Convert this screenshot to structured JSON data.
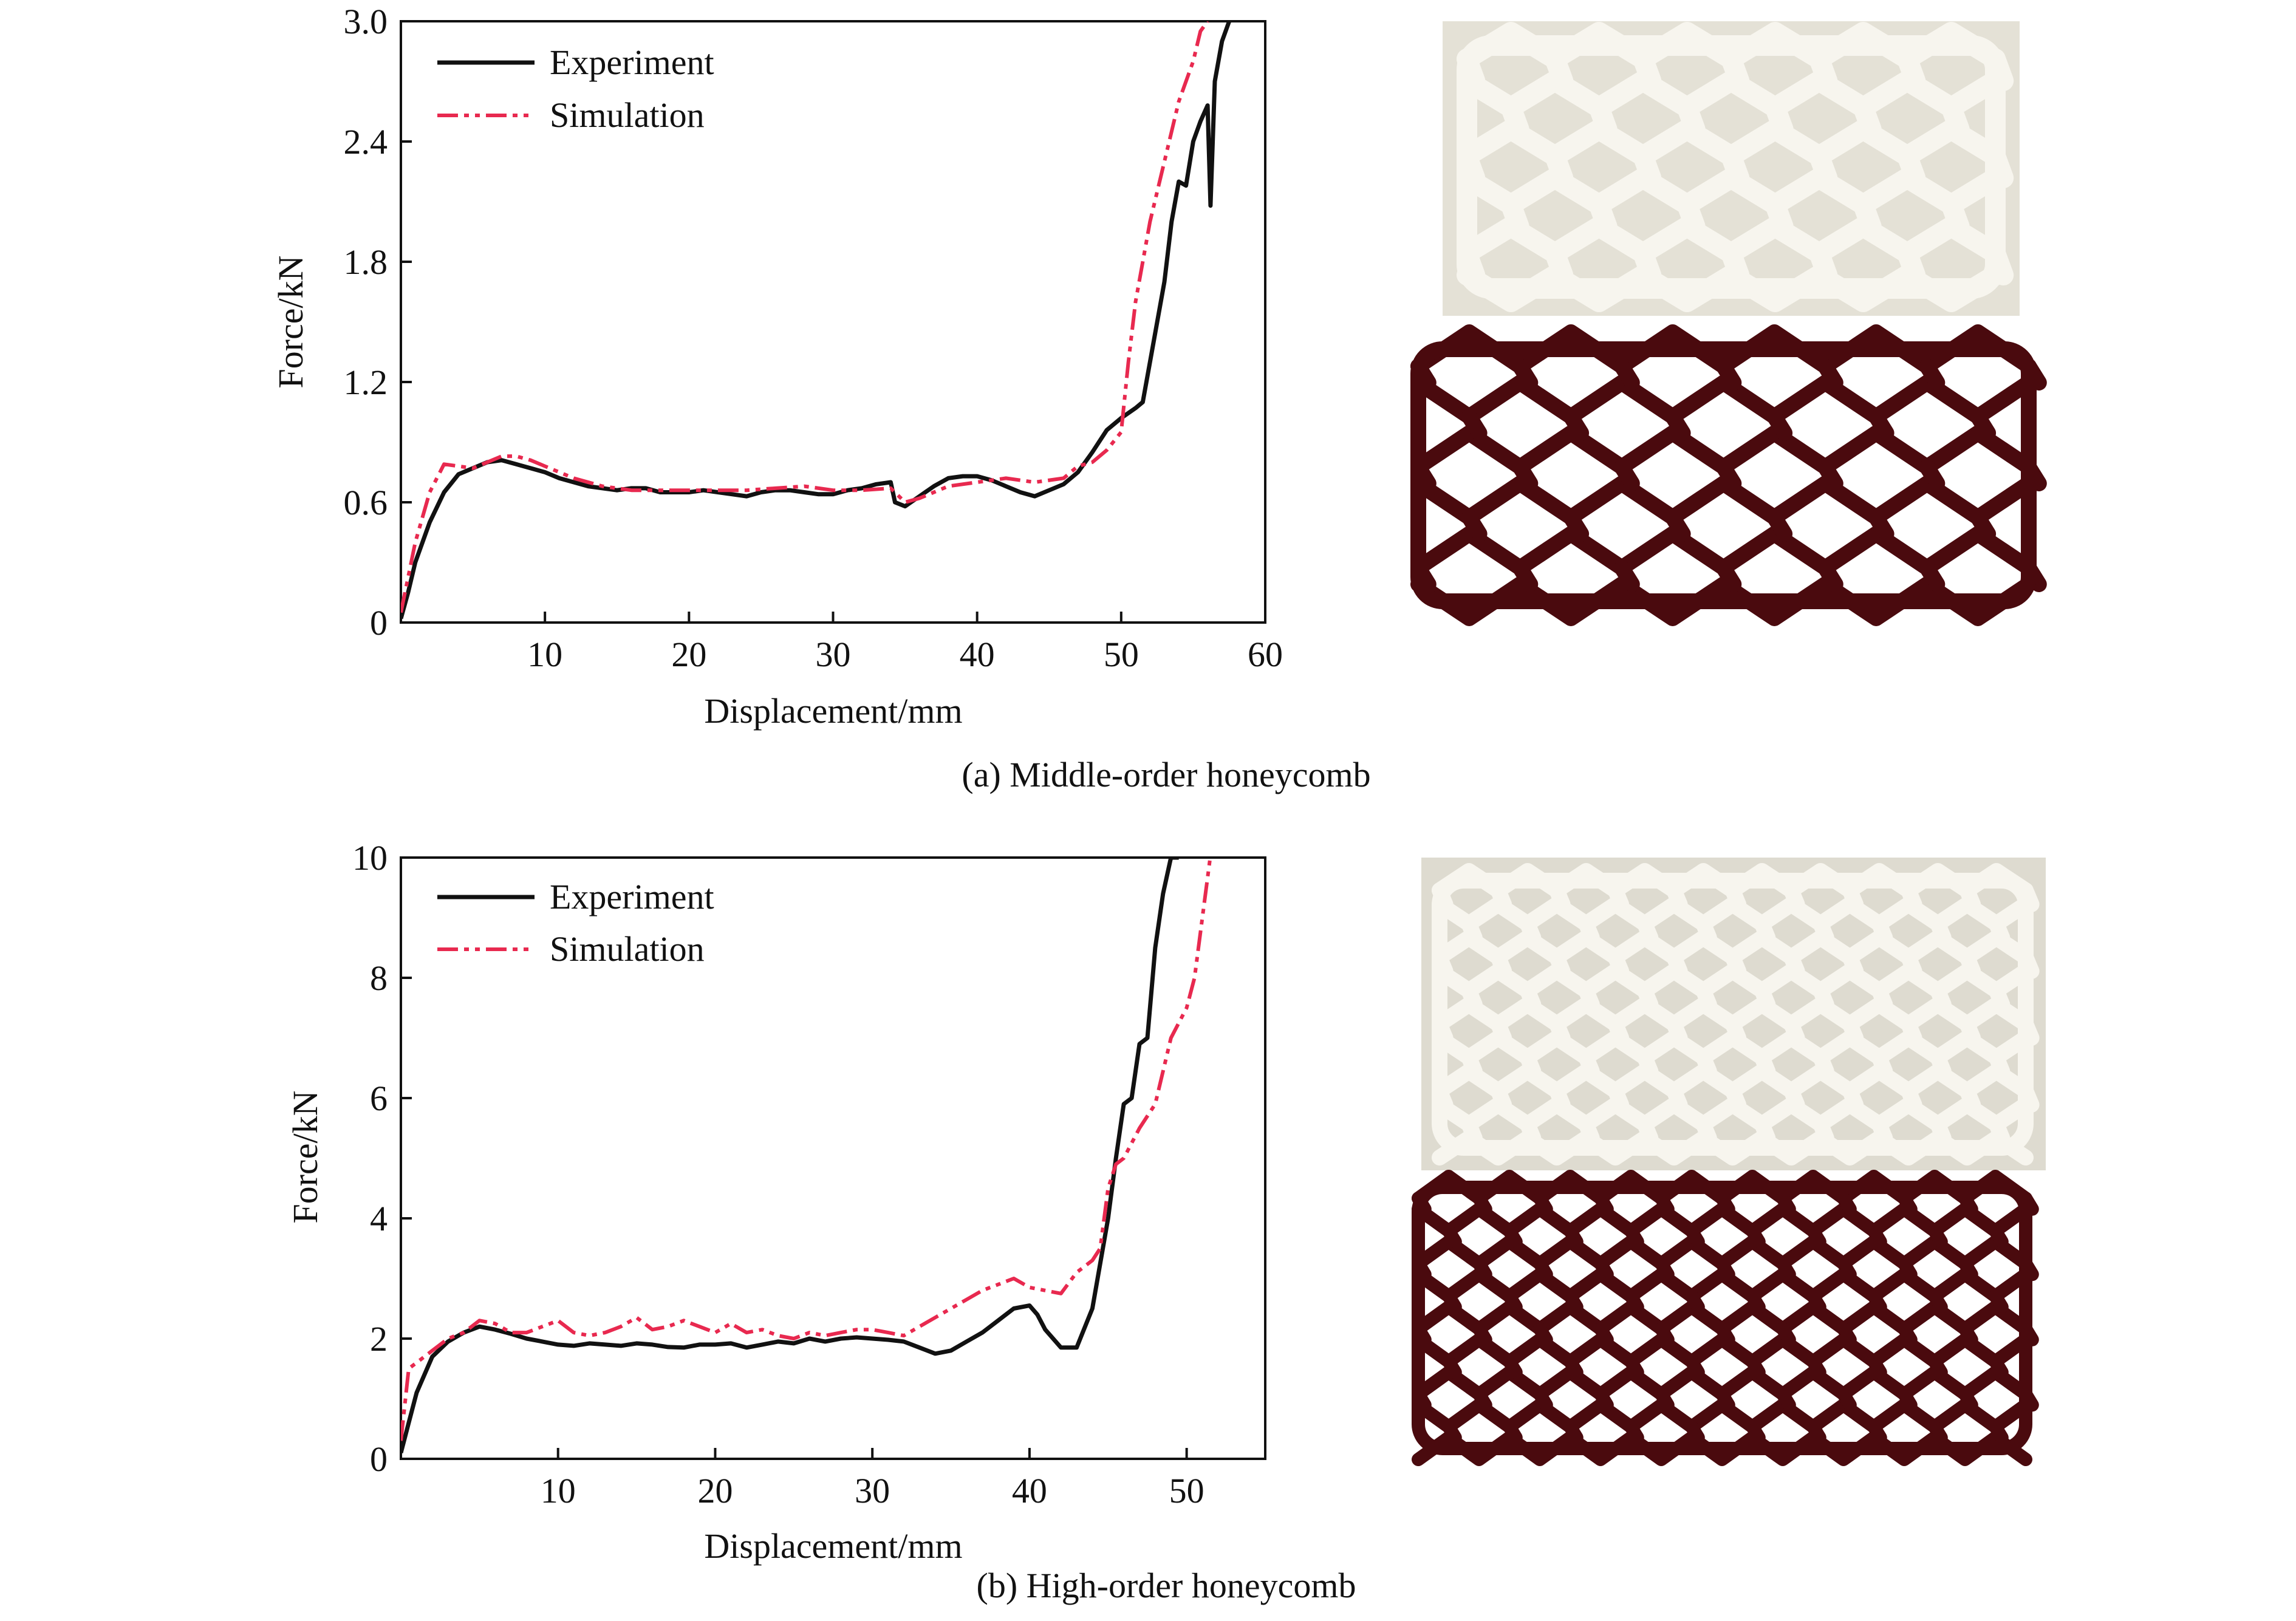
{
  "panels": [
    {
      "caption": "(a) Middle-order honeycomb",
      "photo_label": "photograph-of-deformed-middle-order-honeycomb",
      "sim_label": "simulated-deformed-middle-order-honeycomb"
    },
    {
      "caption": "(b) High-order honeycomb",
      "photo_label": "photograph-of-deformed-high-order-honeycomb",
      "sim_label": "simulated-deformed-high-order-honeycomb"
    }
  ],
  "colors": {
    "experiment": "#111111",
    "simulation": "#e8294f",
    "photo_bg": "#e9e6dc",
    "photo_strut": "#f7f5ee",
    "sim_strut": "#4a0a0e"
  },
  "chart_data": [
    {
      "type": "line",
      "title": "",
      "xlabel": "Displacement/mm",
      "ylabel": "Force/kN",
      "xlim": [
        0,
        60
      ],
      "ylim": [
        0,
        3.0
      ],
      "xticks": [
        10,
        20,
        30,
        40,
        50,
        60
      ],
      "yticks": [
        0,
        0.6,
        1.2,
        1.8,
        2.4,
        3.0
      ],
      "ytick_labels": [
        "0",
        "0.6",
        "1.2",
        "1.8",
        "2.4",
        "3.0"
      ],
      "legend_position": "top-left",
      "series": [
        {
          "name": "Experiment",
          "style": "solid",
          "x": [
            0,
            0.5,
            1,
            2,
            3,
            4,
            5,
            6,
            7,
            8,
            9,
            10,
            11,
            12,
            13,
            14,
            15,
            16,
            17,
            18,
            19,
            20,
            21,
            22,
            23,
            24,
            25,
            26,
            27,
            28,
            29,
            30,
            31,
            32,
            33,
            34,
            34.3,
            35,
            36,
            37,
            38,
            39,
            40,
            41,
            42,
            43,
            44,
            45,
            46,
            47,
            48,
            49,
            50,
            51,
            51.5,
            52,
            53,
            53.5,
            54,
            54.5,
            55,
            55.5,
            56,
            56.2,
            56.5,
            57,
            57.5
          ],
          "y": [
            0.02,
            0.15,
            0.3,
            0.5,
            0.65,
            0.74,
            0.77,
            0.8,
            0.81,
            0.79,
            0.77,
            0.75,
            0.72,
            0.7,
            0.68,
            0.67,
            0.66,
            0.67,
            0.67,
            0.65,
            0.65,
            0.65,
            0.66,
            0.65,
            0.64,
            0.63,
            0.65,
            0.66,
            0.66,
            0.65,
            0.64,
            0.64,
            0.66,
            0.67,
            0.69,
            0.7,
            0.6,
            0.58,
            0.63,
            0.68,
            0.72,
            0.73,
            0.73,
            0.71,
            0.68,
            0.65,
            0.63,
            0.66,
            0.69,
            0.75,
            0.85,
            0.96,
            1.02,
            1.07,
            1.1,
            1.3,
            1.7,
            2.0,
            2.2,
            2.18,
            2.4,
            2.5,
            2.58,
            2.08,
            2.7,
            2.9,
            3.0
          ]
        },
        {
          "name": "Simulation",
          "style": "dash-dot-dot",
          "x": [
            0,
            1,
            2,
            3,
            4,
            5,
            6,
            7,
            8,
            9,
            10,
            12,
            14,
            16,
            18,
            20,
            22,
            24,
            26,
            28,
            30,
            32,
            34,
            35,
            36,
            38,
            40,
            42,
            44,
            46,
            47,
            48,
            49,
            50,
            50.5,
            51,
            52,
            53,
            54,
            55,
            55.5,
            56
          ],
          "y": [
            0.05,
            0.4,
            0.65,
            0.79,
            0.78,
            0.77,
            0.8,
            0.83,
            0.83,
            0.81,
            0.78,
            0.72,
            0.68,
            0.66,
            0.66,
            0.66,
            0.66,
            0.66,
            0.67,
            0.68,
            0.66,
            0.66,
            0.67,
            0.6,
            0.62,
            0.68,
            0.7,
            0.72,
            0.7,
            0.72,
            0.78,
            0.8,
            0.86,
            0.95,
            1.3,
            1.6,
            2.0,
            2.3,
            2.6,
            2.8,
            2.95,
            3.0
          ]
        }
      ]
    },
    {
      "type": "line",
      "title": "",
      "xlabel": "Displacement/mm",
      "ylabel": "Force/kN",
      "xlim": [
        0,
        55
      ],
      "ylim": [
        0,
        10
      ],
      "xticks": [
        10,
        20,
        30,
        40,
        50
      ],
      "yticks": [
        0,
        2,
        4,
        6,
        8,
        10
      ],
      "ytick_labels": [
        "0",
        "2",
        "4",
        "6",
        "8",
        "10"
      ],
      "legend_position": "top-left",
      "series": [
        {
          "name": "Experiment",
          "style": "solid",
          "x": [
            0,
            0.5,
            1,
            2,
            3,
            4,
            5,
            6,
            7,
            8,
            9,
            10,
            11,
            12,
            13,
            14,
            15,
            16,
            17,
            18,
            19,
            20,
            21,
            22,
            23,
            24,
            25,
            26,
            27,
            28,
            29,
            30,
            31,
            32,
            33,
            34,
            35,
            36,
            37,
            38,
            39,
            40,
            40.5,
            41,
            42,
            43,
            44,
            45,
            45.5,
            46,
            46.5,
            47,
            47.5,
            48,
            48.5,
            49,
            49.5
          ],
          "y": [
            0.1,
            0.6,
            1.1,
            1.7,
            1.95,
            2.1,
            2.2,
            2.15,
            2.08,
            2.0,
            1.95,
            1.9,
            1.88,
            1.92,
            1.9,
            1.88,
            1.92,
            1.9,
            1.86,
            1.85,
            1.9,
            1.9,
            1.92,
            1.85,
            1.9,
            1.95,
            1.92,
            2.0,
            1.95,
            2.0,
            2.02,
            2.0,
            1.98,
            1.95,
            1.85,
            1.75,
            1.8,
            1.95,
            2.1,
            2.3,
            2.5,
            2.55,
            2.4,
            2.15,
            1.85,
            1.85,
            2.5,
            4.0,
            5.0,
            5.9,
            6.0,
            6.9,
            7.0,
            8.5,
            9.4,
            10.0,
            10.0
          ]
        },
        {
          "name": "Simulation",
          "style": "dash-dot-dot",
          "x": [
            0,
            0.5,
            1,
            2,
            3,
            4,
            5,
            6,
            7,
            8,
            9,
            10,
            11,
            12,
            13,
            14,
            15,
            16,
            17,
            18,
            19,
            20,
            21,
            22,
            23,
            24,
            25,
            26,
            27,
            28,
            29,
            30,
            31,
            32,
            33,
            34,
            35,
            36,
            37,
            38,
            39,
            40,
            41,
            42,
            43,
            44,
            44.5,
            45,
            45.5,
            46,
            47,
            48,
            49,
            50,
            50.5,
            51,
            51.5
          ],
          "y": [
            0.3,
            1.5,
            1.6,
            1.8,
            2.0,
            2.1,
            2.3,
            2.25,
            2.1,
            2.1,
            2.2,
            2.3,
            2.1,
            2.05,
            2.1,
            2.2,
            2.35,
            2.15,
            2.2,
            2.3,
            2.2,
            2.1,
            2.25,
            2.1,
            2.15,
            2.05,
            2.0,
            2.1,
            2.05,
            2.1,
            2.15,
            2.15,
            2.1,
            2.05,
            2.2,
            2.35,
            2.5,
            2.65,
            2.8,
            2.9,
            3.0,
            2.85,
            2.8,
            2.75,
            3.1,
            3.3,
            3.5,
            4.5,
            4.9,
            5.0,
            5.5,
            5.9,
            7.0,
            7.5,
            8.0,
            9.0,
            10.0
          ]
        }
      ]
    }
  ]
}
